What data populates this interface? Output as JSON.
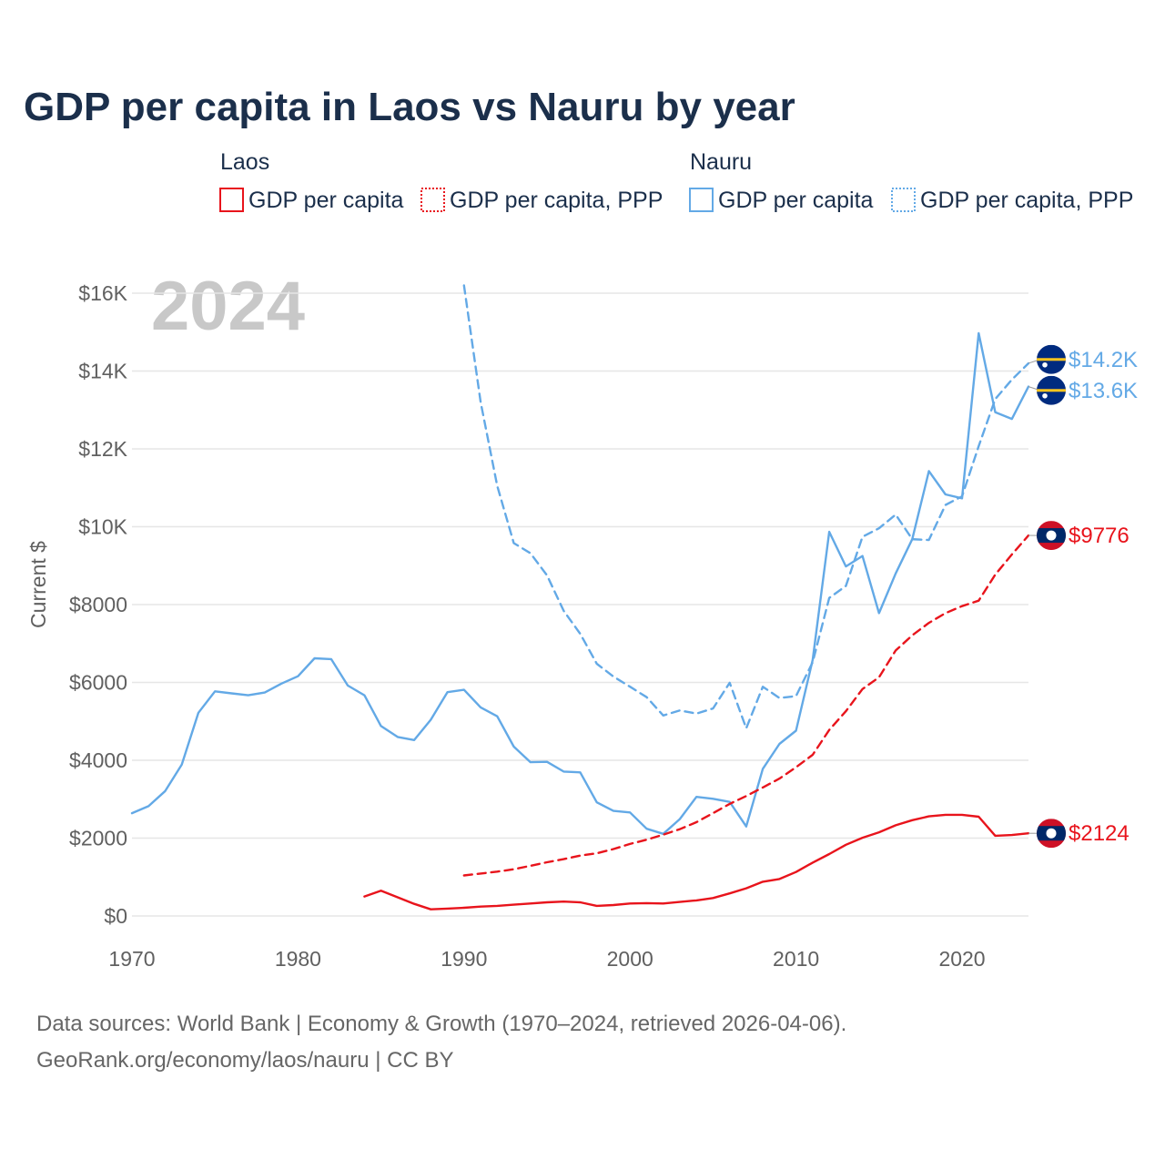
{
  "chart_data": {
    "type": "line",
    "title": "GDP per capita in Laos vs Nauru by year",
    "ylabel": "Current $",
    "xlabel": "",
    "xlim": [
      1970,
      2024
    ],
    "ylim": [
      0,
      16000
    ],
    "grid": true,
    "legend_position": "top",
    "watermark_year": "2024",
    "x_ticks": [
      {
        "value": 1970,
        "label": "1970"
      },
      {
        "value": 1980,
        "label": "1980"
      },
      {
        "value": 1990,
        "label": "1990"
      },
      {
        "value": 2000,
        "label": "2000"
      },
      {
        "value": 2010,
        "label": "2010"
      },
      {
        "value": 2020,
        "label": "2020"
      }
    ],
    "y_ticks": [
      {
        "value": 0,
        "label": "$0"
      },
      {
        "value": 2000,
        "label": "$2000"
      },
      {
        "value": 4000,
        "label": "$4000"
      },
      {
        "value": 6000,
        "label": "$6000"
      },
      {
        "value": 8000,
        "label": "$8000"
      },
      {
        "value": 10000,
        "label": "$10K"
      },
      {
        "value": 12000,
        "label": "$12K"
      },
      {
        "value": 14000,
        "label": "$14K"
      },
      {
        "value": 16000,
        "label": "$16K"
      }
    ],
    "legend_groups": [
      {
        "name": "Laos",
        "items": [
          "GDP per capita",
          "GDP per capita, PPP"
        ],
        "color": "#e8141c"
      },
      {
        "name": "Nauru",
        "items": [
          "GDP per capita",
          "GDP per capita, PPP"
        ],
        "color": "#63a9e6"
      }
    ],
    "series": [
      {
        "name": "Nauru GDP per capita",
        "country": "Nauru",
        "color": "#63a9e6",
        "dash": "solid",
        "end_label": "$13.6K",
        "x": [
          1970,
          1971,
          1972,
          1973,
          1974,
          1975,
          1976,
          1977,
          1978,
          1979,
          1980,
          1981,
          1982,
          1983,
          1984,
          1985,
          1986,
          1987,
          1988,
          1989,
          1990,
          1991,
          1992,
          1993,
          1994,
          1995,
          1996,
          1997,
          1998,
          1999,
          2000,
          2001,
          2002,
          2003,
          2004,
          2005,
          2006,
          2007,
          2008,
          2009,
          2010,
          2011,
          2012,
          2013,
          2014,
          2015,
          2016,
          2017,
          2018,
          2019,
          2020,
          2021,
          2022,
          2023,
          2024
        ],
        "values": [
          2640,
          2820,
          3210,
          3890,
          5220,
          5770,
          5720,
          5670,
          5740,
          5970,
          6160,
          6620,
          6600,
          5920,
          5670,
          4880,
          4600,
          4520,
          5040,
          5750,
          5810,
          5360,
          5130,
          4350,
          3950,
          3960,
          3710,
          3690,
          2920,
          2700,
          2660,
          2240,
          2110,
          2490,
          3060,
          3010,
          2930,
          2300,
          3780,
          4420,
          4760,
          6580,
          9870,
          8980,
          9250,
          7780,
          8800,
          9680,
          11430,
          10830,
          10730,
          14970,
          12940,
          12770,
          13600
        ]
      },
      {
        "name": "Nauru GDP per capita, PPP",
        "country": "Nauru",
        "color": "#63a9e6",
        "dash": "dashed",
        "end_label": "$14.2K",
        "x": [
          1990,
          1991,
          1992,
          1993,
          1994,
          1995,
          1996,
          1997,
          1998,
          1999,
          2000,
          2001,
          2002,
          2003,
          2004,
          2005,
          2006,
          2007,
          2008,
          2009,
          2010,
          2011,
          2012,
          2013,
          2014,
          2015,
          2016,
          2017,
          2018,
          2019,
          2020,
          2021,
          2022,
          2023,
          2024
        ],
        "values": [
          16200,
          13200,
          11050,
          9580,
          9320,
          8750,
          7840,
          7250,
          6480,
          6150,
          5890,
          5620,
          5150,
          5280,
          5200,
          5330,
          5990,
          4820,
          5890,
          5600,
          5650,
          6520,
          8170,
          8480,
          9740,
          9960,
          10310,
          9680,
          9660,
          10560,
          10780,
          12070,
          13280,
          13780,
          14200
        ]
      },
      {
        "name": "Laos GDP per capita",
        "country": "Laos",
        "color": "#e8141c",
        "dash": "solid",
        "end_label": "$2124",
        "x": [
          1984,
          1985,
          1986,
          1987,
          1988,
          1989,
          1990,
          1991,
          1992,
          1993,
          1994,
          1995,
          1996,
          1997,
          1998,
          1999,
          2000,
          2001,
          2002,
          2003,
          2004,
          2005,
          2006,
          2007,
          2008,
          2009,
          2010,
          2011,
          2012,
          2013,
          2014,
          2015,
          2016,
          2017,
          2018,
          2019,
          2020,
          2021,
          2022,
          2023,
          2024
        ],
        "values": [
          500,
          650,
          480,
          310,
          170,
          190,
          210,
          240,
          260,
          290,
          320,
          350,
          370,
          350,
          260,
          280,
          320,
          330,
          320,
          360,
          400,
          460,
          580,
          710,
          880,
          950,
          1130,
          1370,
          1590,
          1830,
          2010,
          2150,
          2330,
          2460,
          2560,
          2600,
          2600,
          2550,
          2060,
          2080,
          2124
        ]
      },
      {
        "name": "Laos GDP per capita, PPP",
        "country": "Laos",
        "color": "#e8141c",
        "dash": "dashed",
        "end_label": "$9776",
        "x": [
          1990,
          1991,
          1992,
          1993,
          1994,
          1995,
          1996,
          1997,
          1998,
          1999,
          2000,
          2001,
          2002,
          2003,
          2004,
          2005,
          2006,
          2007,
          2008,
          2009,
          2010,
          2011,
          2012,
          2013,
          2014,
          2015,
          2016,
          2017,
          2018,
          2019,
          2020,
          2021,
          2022,
          2023,
          2024
        ],
        "values": [
          1040,
          1090,
          1140,
          1200,
          1290,
          1380,
          1460,
          1550,
          1610,
          1720,
          1850,
          1960,
          2090,
          2230,
          2410,
          2640,
          2880,
          3080,
          3300,
          3530,
          3820,
          4140,
          4780,
          5260,
          5830,
          6130,
          6820,
          7210,
          7530,
          7780,
          7960,
          8100,
          8770,
          9290,
          9776
        ]
      }
    ]
  },
  "footer": {
    "line1": "Data sources: World Bank | Economy & Growth (1970–2024, retrieved 2026-04-06).",
    "line2": "GeoRank.org/economy/laos/nauru | CC BY"
  }
}
